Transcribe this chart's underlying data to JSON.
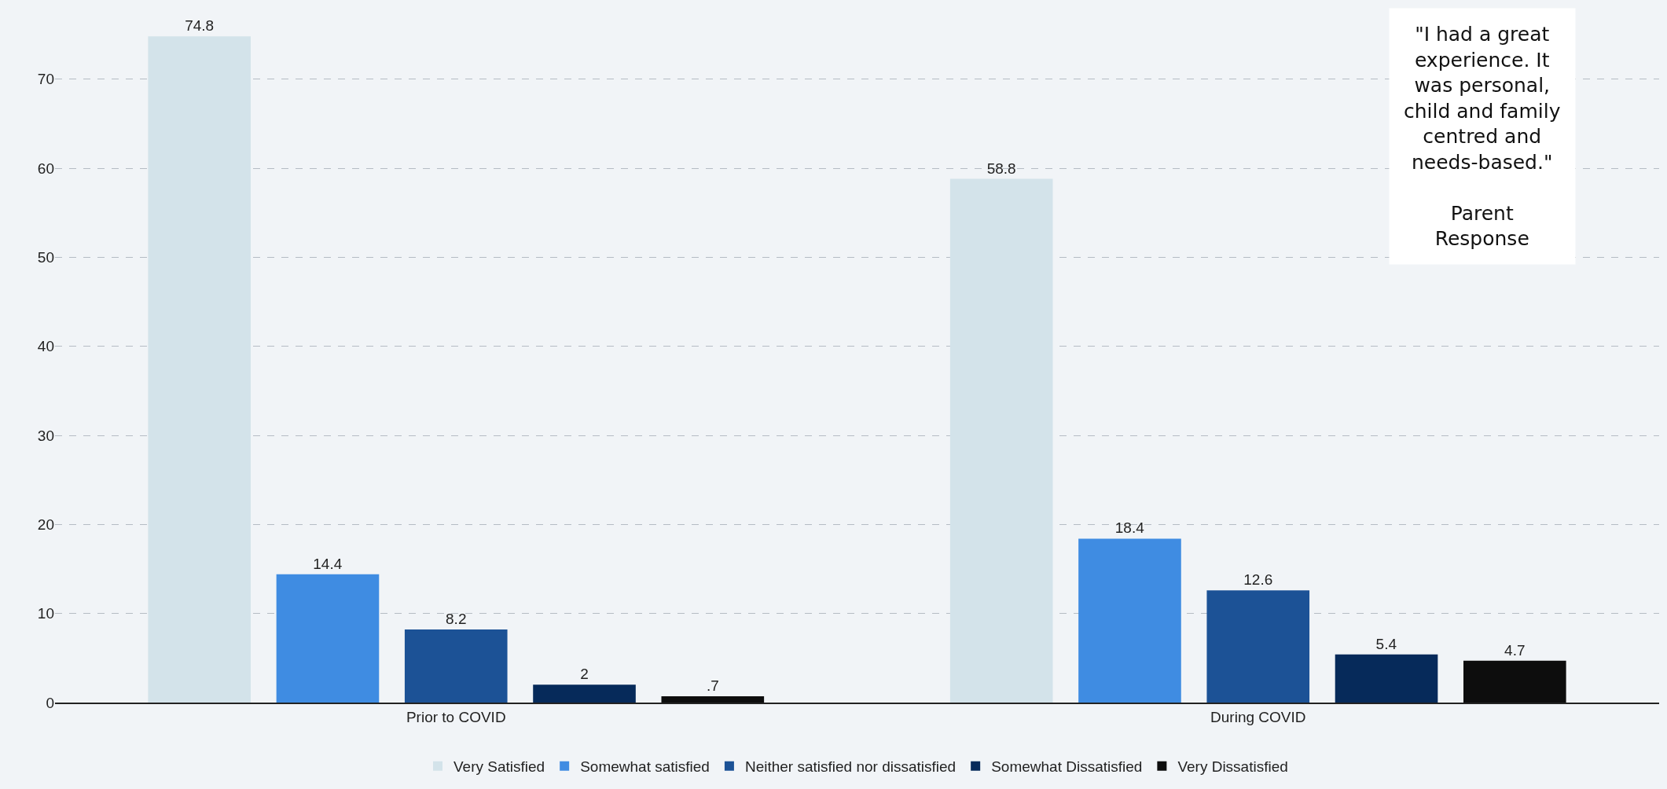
{
  "chart_data": {
    "type": "bar",
    "categories": [
      "Prior to COVID",
      "During COVID"
    ],
    "series": [
      {
        "name": "Very Satisfied",
        "color": "#d3e3ea",
        "values": [
          74.8,
          58.8
        ],
        "value_labels": [
          "74.8",
          "58.8"
        ]
      },
      {
        "name": "Somewhat satisfied",
        "color": "#3f8ce2",
        "values": [
          14.4,
          18.4
        ],
        "value_labels": [
          "14.4",
          "18.4"
        ]
      },
      {
        "name": "Neither satisfied nor dissatisfied",
        "color": "#1c5296",
        "values": [
          8.2,
          12.6
        ],
        "value_labels": [
          "8.2",
          "12.6"
        ]
      },
      {
        "name": "Somewhat Dissatisfied",
        "color": "#062a5a",
        "values": [
          2,
          5.4
        ],
        "value_labels": [
          "2",
          "5.4"
        ]
      },
      {
        "name": "Very Dissatisfied",
        "color": "#0d0d0d",
        "values": [
          0.7,
          4.7
        ],
        "value_labels": [
          ".7",
          "4.7"
        ]
      }
    ],
    "ylim": [
      0,
      78
    ],
    "yticks": [
      0,
      10,
      20,
      30,
      40,
      50,
      60,
      70
    ],
    "grid": "y",
    "legend": "bottom",
    "annotations": [
      "\"I had a great\nexperience. It\nwas personal,\nchild and family\ncentred and\nneeds-based.\"\n\nParent\nResponse"
    ]
  }
}
